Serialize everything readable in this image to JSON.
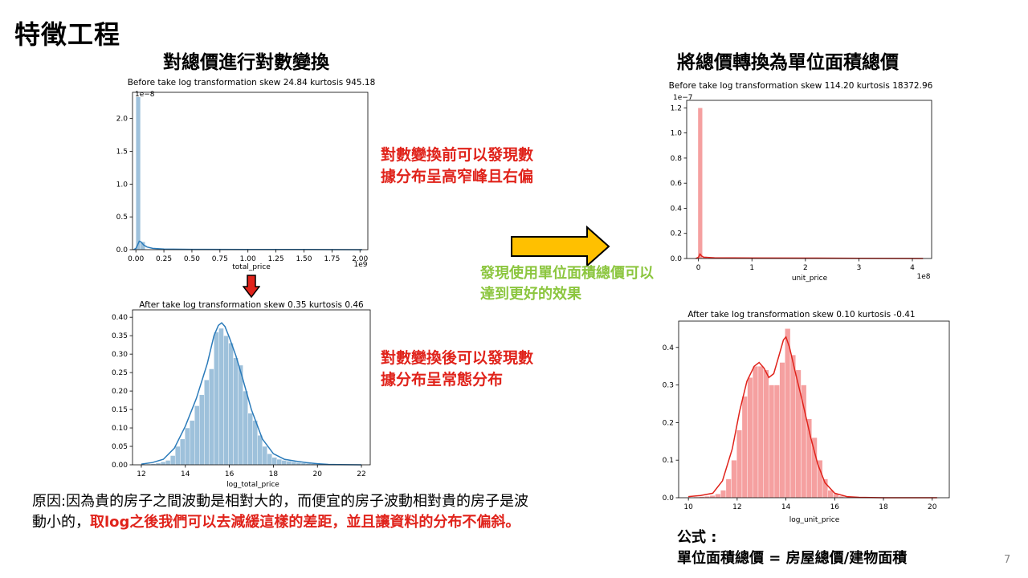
{
  "slide": {
    "title": "特徵工程",
    "page_number": "7",
    "left_title": "對總價進行對數變換",
    "right_title": "將總價轉換為單位面積總價",
    "note_before": "對數變換前可以發現數據分布呈高窄峰且右偏",
    "note_after": "對數變換後可以發現數據分布呈常態分布",
    "green_note": "發現使用單位面積總價可以達到更好的效果",
    "reason_plain": "原因:因為貴的房子之間波動是相對大的，而便宜的房子波動相對貴的房子是波動小的，",
    "reason_highlight": "取log之後我們可以去減緩這樣的差距，並且讓資料的分布不偏斜。",
    "formula_label": "公式 :",
    "formula": "單位面積總價 = 房屋總價/建物面積"
  },
  "colors": {
    "blue_bar": "#9ec1db",
    "blue_line": "#2b7bba",
    "red_bar": "#f5a0a0",
    "red_line": "#e0231b",
    "note_red": "#e0231b",
    "green": "#8cc63f",
    "arrow_yellow": "#ffc000",
    "arrow_down_red": "#e0231b"
  },
  "chart_data": [
    {
      "id": "tp_before",
      "type": "histogram",
      "title": "Before take log transformation skew 24.84 kurtosis 945.18",
      "xlabel": "total_price",
      "x_multiplier": "1e9",
      "y_multiplier": "1e−8",
      "xlim": [
        -0.03,
        2.07
      ],
      "ylim": [
        0,
        2.4
      ],
      "xticks": [
        0.0,
        0.25,
        0.5,
        0.75,
        1.0,
        1.25,
        1.5,
        1.75,
        2.0
      ],
      "xtick_labels": [
        "0.00",
        "0.25",
        "0.50",
        "0.75",
        "1.00",
        "1.25",
        "1.50",
        "1.75",
        "2.00"
      ],
      "yticks": [
        0.0,
        0.5,
        1.0,
        1.5,
        2.0
      ],
      "ytick_labels": [
        "0.0",
        "0.5",
        "1.0",
        "1.5",
        "2.0"
      ],
      "bar_width": 0.041,
      "bars": [
        [
          0.0,
          2.33
        ],
        [
          0.041,
          0.12
        ]
      ],
      "kde": [
        [
          -0.02,
          0.0
        ],
        [
          0.0,
          0.02
        ],
        [
          0.015,
          0.07
        ],
        [
          0.03,
          0.13
        ],
        [
          0.045,
          0.12
        ],
        [
          0.07,
          0.07
        ],
        [
          0.1,
          0.04
        ],
        [
          0.15,
          0.02
        ],
        [
          0.25,
          0.01
        ],
        [
          0.5,
          0.005
        ],
        [
          1.0,
          0.004
        ],
        [
          1.5,
          0.003
        ],
        [
          2.02,
          0.0
        ]
      ]
    },
    {
      "id": "tp_after",
      "type": "histogram",
      "title": "After take log transformation skew 0.35 kurtosis 0.46",
      "xlabel": "log_total_price",
      "xlim": [
        11.6,
        22.4
      ],
      "ylim": [
        0,
        0.42
      ],
      "xticks": [
        12,
        14,
        16,
        18,
        20,
        22
      ],
      "xtick_labels": [
        "12",
        "14",
        "16",
        "18",
        "20",
        "22"
      ],
      "yticks": [
        0.0,
        0.05,
        0.1,
        0.15,
        0.2,
        0.25,
        0.3,
        0.35,
        0.4
      ],
      "ytick_labels": [
        "0.00",
        "0.05",
        "0.10",
        "0.15",
        "0.20",
        "0.25",
        "0.30",
        "0.35",
        "0.40"
      ],
      "bar_width": 0.22,
      "bars": [
        [
          12.0,
          0.001
        ],
        [
          12.22,
          0.002
        ],
        [
          12.44,
          0.003
        ],
        [
          12.66,
          0.005
        ],
        [
          12.88,
          0.008
        ],
        [
          13.1,
          0.012
        ],
        [
          13.32,
          0.025
        ],
        [
          13.54,
          0.05
        ],
        [
          13.76,
          0.07
        ],
        [
          13.98,
          0.1
        ],
        [
          14.2,
          0.12
        ],
        [
          14.42,
          0.16
        ],
        [
          14.64,
          0.19
        ],
        [
          14.86,
          0.23
        ],
        [
          15.08,
          0.26
        ],
        [
          15.3,
          0.36
        ],
        [
          15.52,
          0.37
        ],
        [
          15.74,
          0.35
        ],
        [
          15.96,
          0.33
        ],
        [
          16.18,
          0.29
        ],
        [
          16.4,
          0.27
        ],
        [
          16.62,
          0.2
        ],
        [
          16.84,
          0.14
        ],
        [
          17.06,
          0.12
        ],
        [
          17.28,
          0.08
        ],
        [
          17.5,
          0.05
        ],
        [
          17.72,
          0.03
        ],
        [
          17.94,
          0.02
        ],
        [
          18.16,
          0.015
        ],
        [
          18.38,
          0.012
        ],
        [
          18.6,
          0.01
        ],
        [
          18.82,
          0.008
        ],
        [
          19.04,
          0.006
        ],
        [
          19.26,
          0.005
        ],
        [
          19.48,
          0.004
        ],
        [
          19.7,
          0.003
        ],
        [
          19.92,
          0.002
        ],
        [
          20.14,
          0.0015
        ]
      ],
      "kde": [
        [
          12.0,
          0.002
        ],
        [
          12.5,
          0.006
        ],
        [
          13.0,
          0.015
        ],
        [
          13.5,
          0.045
        ],
        [
          14.0,
          0.105
        ],
        [
          14.5,
          0.18
        ],
        [
          15.0,
          0.275
        ],
        [
          15.3,
          0.35
        ],
        [
          15.5,
          0.378
        ],
        [
          15.65,
          0.385
        ],
        [
          15.8,
          0.375
        ],
        [
          16.0,
          0.345
        ],
        [
          16.3,
          0.295
        ],
        [
          16.6,
          0.235
        ],
        [
          17.0,
          0.15
        ],
        [
          17.5,
          0.07
        ],
        [
          18.0,
          0.03
        ],
        [
          18.5,
          0.015
        ],
        [
          19.0,
          0.01
        ],
        [
          19.5,
          0.006
        ],
        [
          20.0,
          0.003
        ],
        [
          20.5,
          0.001
        ],
        [
          21.0,
          0.0004
        ],
        [
          22.0,
          0.0
        ]
      ]
    },
    {
      "id": "up_before",
      "type": "histogram",
      "title": "Before take log transformation skew 114.20 kurtosis 18372.96",
      "xlabel": "unit_price",
      "x_multiplier": "1e8",
      "y_multiplier": "1e−7",
      "xlim": [
        -0.22,
        4.36
      ],
      "ylim": [
        0,
        1.26
      ],
      "xticks": [
        0,
        1,
        2,
        3,
        4
      ],
      "xtick_labels": [
        "0",
        "1",
        "2",
        "3",
        "4"
      ],
      "yticks": [
        0.0,
        0.2,
        0.4,
        0.6,
        0.8,
        1.0,
        1.2
      ],
      "ytick_labels": [
        "0.0",
        "0.2",
        "0.4",
        "0.6",
        "0.8",
        "1.0",
        "1.2"
      ],
      "bar_width": 0.085,
      "bars": [
        [
          -0.01,
          1.2
        ],
        [
          0.075,
          0.015
        ]
      ],
      "kde": [
        [
          -0.05,
          0.0
        ],
        [
          0.0,
          0.01
        ],
        [
          0.03,
          0.035
        ],
        [
          0.06,
          0.02
        ],
        [
          0.1,
          0.01
        ],
        [
          0.3,
          0.006
        ],
        [
          1.0,
          0.004
        ],
        [
          2.0,
          0.003
        ],
        [
          3.0,
          0.002
        ],
        [
          4.2,
          0.0
        ]
      ]
    },
    {
      "id": "up_after",
      "type": "histogram",
      "title": "After take log transformation skew 0.10 kurtosis -0.41",
      "xlabel": "log_unit_price",
      "xlim": [
        9.6,
        20.7
      ],
      "ylim": [
        0,
        0.47
      ],
      "xticks": [
        10,
        12,
        14,
        16,
        18,
        20
      ],
      "xtick_labels": [
        "10",
        "12",
        "14",
        "16",
        "18",
        "20"
      ],
      "yticks": [
        0.0,
        0.1,
        0.2,
        0.3,
        0.4
      ],
      "ytick_labels": [
        "0.0",
        "0.1",
        "0.2",
        "0.3",
        "0.4"
      ],
      "bar_width": 0.22,
      "bars": [
        [
          10.0,
          0.001
        ],
        [
          10.22,
          0.002
        ],
        [
          10.44,
          0.003
        ],
        [
          10.66,
          0.004
        ],
        [
          10.88,
          0.006
        ],
        [
          11.1,
          0.01
        ],
        [
          11.32,
          0.02
        ],
        [
          11.54,
          0.05
        ],
        [
          11.76,
          0.1
        ],
        [
          11.98,
          0.18
        ],
        [
          12.2,
          0.27
        ],
        [
          12.42,
          0.32
        ],
        [
          12.64,
          0.35
        ],
        [
          12.86,
          0.35
        ],
        [
          13.08,
          0.34
        ],
        [
          13.3,
          0.3
        ],
        [
          13.52,
          0.3
        ],
        [
          13.74,
          0.36
        ],
        [
          13.96,
          0.45
        ],
        [
          14.18,
          0.38
        ],
        [
          14.4,
          0.34
        ],
        [
          14.62,
          0.3
        ],
        [
          14.84,
          0.21
        ],
        [
          15.06,
          0.16
        ],
        [
          15.28,
          0.1
        ],
        [
          15.5,
          0.05
        ],
        [
          15.72,
          0.02
        ],
        [
          15.94,
          0.01
        ],
        [
          16.16,
          0.004
        ],
        [
          16.38,
          0.002
        ]
      ],
      "kde": [
        [
          10.0,
          0.003
        ],
        [
          10.5,
          0.006
        ],
        [
          11.0,
          0.012
        ],
        [
          11.4,
          0.045
        ],
        [
          11.8,
          0.13
        ],
        [
          12.1,
          0.23
        ],
        [
          12.4,
          0.31
        ],
        [
          12.7,
          0.35
        ],
        [
          12.9,
          0.36
        ],
        [
          13.1,
          0.345
        ],
        [
          13.3,
          0.32
        ],
        [
          13.5,
          0.33
        ],
        [
          13.7,
          0.375
        ],
        [
          13.9,
          0.42
        ],
        [
          14.0,
          0.428
        ],
        [
          14.15,
          0.4
        ],
        [
          14.4,
          0.33
        ],
        [
          14.7,
          0.25
        ],
        [
          15.0,
          0.165
        ],
        [
          15.3,
          0.09
        ],
        [
          15.6,
          0.04
        ],
        [
          16.0,
          0.012
        ],
        [
          16.5,
          0.003
        ],
        [
          17.0,
          0.001
        ],
        [
          18.0,
          0.0
        ],
        [
          20.2,
          0.0
        ]
      ]
    }
  ]
}
